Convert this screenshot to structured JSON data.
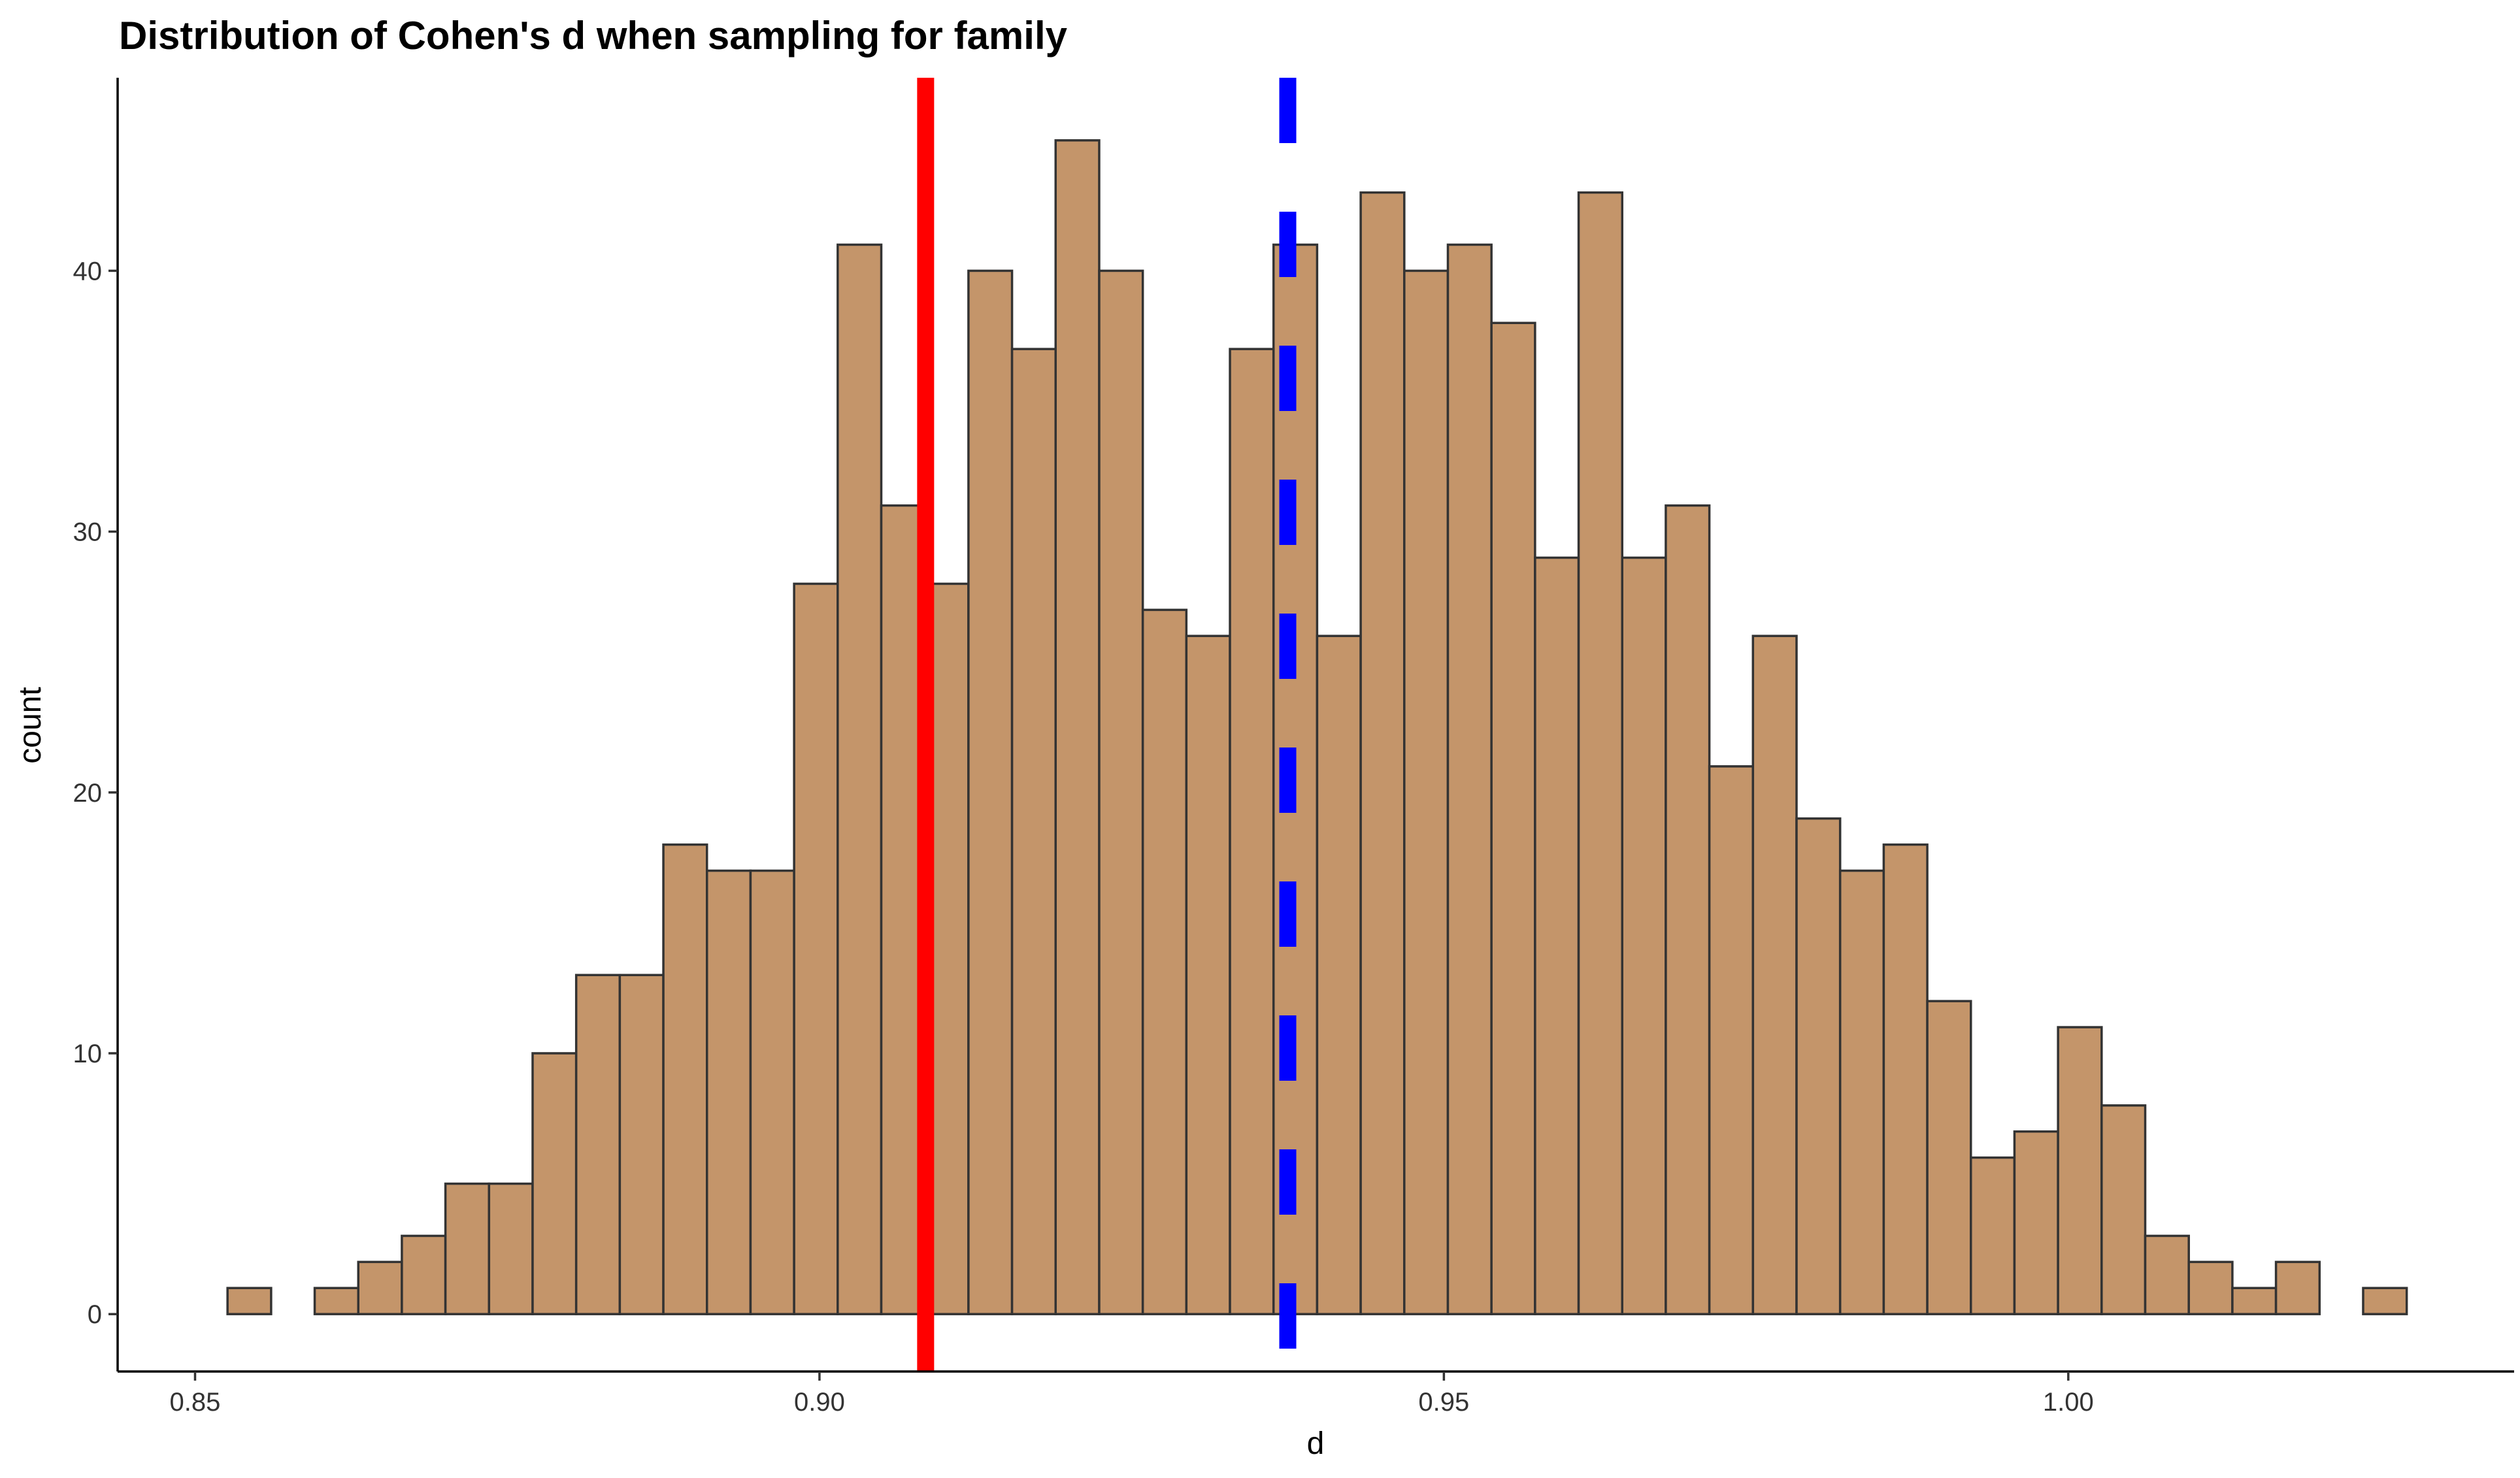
{
  "chart_data": {
    "type": "histogram",
    "title": "Distribution of Cohen's d when sampling for family",
    "x_label": "d",
    "y_label": "count",
    "bins": [
      0.8526,
      0.85609,
      0.85958,
      0.86307,
      0.86656,
      0.87005,
      0.87354,
      0.87703,
      0.88052,
      0.88401,
      0.8875,
      0.89099,
      0.89448,
      0.89797,
      0.90146,
      0.90495,
      0.90844,
      0.91193,
      0.91542,
      0.91891,
      0.9224,
      0.92589,
      0.92938,
      0.93287,
      0.93636,
      0.93985,
      0.94334,
      0.94683,
      0.95032,
      0.95381,
      0.9573,
      0.96079,
      0.96428,
      0.96777,
      0.97126,
      0.97475,
      0.97824,
      0.98173,
      0.98522,
      0.98871,
      0.9922,
      0.99569,
      0.99918,
      1.00267,
      1.00616,
      1.00965,
      1.01314,
      1.01663,
      1.02012,
      1.02361,
      1.0271
    ],
    "counts": [
      1,
      0,
      1,
      2,
      3,
      5,
      5,
      10,
      13,
      13,
      18,
      17,
      17,
      28,
      41,
      31,
      28,
      40,
      37,
      45,
      40,
      27,
      26,
      37,
      41,
      26,
      43,
      40,
      41,
      38,
      29,
      43,
      29,
      31,
      21,
      26,
      19,
      17,
      18,
      12,
      6,
      7,
      11,
      8,
      3,
      2,
      1,
      2,
      0,
      1
    ],
    "color": "#c4956a",
    "edge_color": "#333333",
    "vlines": [
      {
        "value": 0.9085,
        "color": "#ff0000",
        "style": "solid"
      },
      {
        "value": 0.9375,
        "color": "#0000ff",
        "style": "dashed"
      }
    ],
    "xlim": [
      0.8438,
      1.0357
    ],
    "ylim": [
      -2.2,
      47.4
    ],
    "xticks": [
      {
        "value": 0.85,
        "label": "0.85"
      },
      {
        "value": 0.9,
        "label": "0.90"
      },
      0.95,
      {
        "value": 1.0,
        "label": "1.00"
      }
    ],
    "yticks": [
      0,
      10,
      20,
      30,
      40
    ],
    "grid": false
  }
}
